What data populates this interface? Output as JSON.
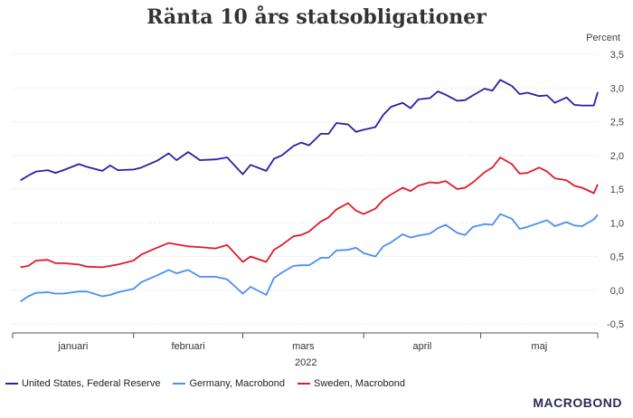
{
  "title": "Ränta 10 års statsobligationer",
  "unit_label": "Percent",
  "year_label": "2022",
  "brand": "MACROBOND",
  "colors": {
    "us": "#2b1fa3",
    "de": "#4a8ff0",
    "se": "#e01a2a",
    "grid": "#dcdcdc",
    "axis": "#555555"
  },
  "chart_data": {
    "type": "line",
    "title": "Ränta 10 års statsobligationer",
    "ylabel": "Percent",
    "xlabel": "2022",
    "ylim": [
      -0.5,
      3.5
    ],
    "yticks": [
      -0.5,
      0.0,
      0.5,
      1.0,
      1.5,
      2.0,
      2.5,
      3.0,
      3.5
    ],
    "ytick_labels": [
      "-0,5",
      "0,0",
      "0,5",
      "1,0",
      "1,5",
      "2,0",
      "2,5",
      "3,0",
      "3,5"
    ],
    "x_months": [
      "januari",
      "februari",
      "mars",
      "april",
      "maj"
    ],
    "x_range": [
      "2022-01-01",
      "2022-05-31"
    ],
    "grid": "horizontal",
    "legend_position": "bottom",
    "series": [
      {
        "name": "United States, Federal Reserve",
        "color": "#2b1fa3",
        "points": [
          [
            "2022-01-03",
            1.63
          ],
          [
            "2022-01-05",
            1.7
          ],
          [
            "2022-01-07",
            1.76
          ],
          [
            "2022-01-10",
            1.78
          ],
          [
            "2022-01-12",
            1.74
          ],
          [
            "2022-01-14",
            1.78
          ],
          [
            "2022-01-18",
            1.87
          ],
          [
            "2022-01-20",
            1.83
          ],
          [
            "2022-01-24",
            1.77
          ],
          [
            "2022-01-26",
            1.85
          ],
          [
            "2022-01-28",
            1.78
          ],
          [
            "2022-02-01",
            1.79
          ],
          [
            "2022-02-03",
            1.82
          ],
          [
            "2022-02-07",
            1.92
          ],
          [
            "2022-02-10",
            2.03
          ],
          [
            "2022-02-12",
            1.93
          ],
          [
            "2022-02-15",
            2.05
          ],
          [
            "2022-02-18",
            1.93
          ],
          [
            "2022-02-22",
            1.94
          ],
          [
            "2022-02-25",
            1.97
          ],
          [
            "2022-03-01",
            1.72
          ],
          [
            "2022-03-03",
            1.86
          ],
          [
            "2022-03-07",
            1.77
          ],
          [
            "2022-03-09",
            1.95
          ],
          [
            "2022-03-11",
            2.0
          ],
          [
            "2022-03-14",
            2.14
          ],
          [
            "2022-03-16",
            2.19
          ],
          [
            "2022-03-18",
            2.15
          ],
          [
            "2022-03-21",
            2.32
          ],
          [
            "2022-03-23",
            2.32
          ],
          [
            "2022-03-25",
            2.48
          ],
          [
            "2022-03-28",
            2.46
          ],
          [
            "2022-03-30",
            2.35
          ],
          [
            "2022-04-01",
            2.38
          ],
          [
            "2022-04-04",
            2.42
          ],
          [
            "2022-04-06",
            2.6
          ],
          [
            "2022-04-08",
            2.72
          ],
          [
            "2022-04-11",
            2.78
          ],
          [
            "2022-04-13",
            2.7
          ],
          [
            "2022-04-15",
            2.83
          ],
          [
            "2022-04-18",
            2.85
          ],
          [
            "2022-04-20",
            2.95
          ],
          [
            "2022-04-22",
            2.9
          ],
          [
            "2022-04-25",
            2.81
          ],
          [
            "2022-04-27",
            2.82
          ],
          [
            "2022-04-29",
            2.89
          ],
          [
            "2022-05-02",
            2.99
          ],
          [
            "2022-05-04",
            2.96
          ],
          [
            "2022-05-06",
            3.12
          ],
          [
            "2022-05-09",
            3.03
          ],
          [
            "2022-05-11",
            2.91
          ],
          [
            "2022-05-13",
            2.93
          ],
          [
            "2022-05-16",
            2.88
          ],
          [
            "2022-05-18",
            2.89
          ],
          [
            "2022-05-20",
            2.78
          ],
          [
            "2022-05-23",
            2.86
          ],
          [
            "2022-05-25",
            2.75
          ],
          [
            "2022-05-27",
            2.74
          ],
          [
            "2022-05-30",
            2.74
          ],
          [
            "2022-05-31",
            2.94
          ]
        ]
      },
      {
        "name": "Germany, Macrobond",
        "color": "#4a8ff0",
        "points": [
          [
            "2022-01-03",
            -0.17
          ],
          [
            "2022-01-05",
            -0.09
          ],
          [
            "2022-01-07",
            -0.04
          ],
          [
            "2022-01-10",
            -0.03
          ],
          [
            "2022-01-12",
            -0.05
          ],
          [
            "2022-01-14",
            -0.05
          ],
          [
            "2022-01-18",
            -0.02
          ],
          [
            "2022-01-20",
            -0.02
          ],
          [
            "2022-01-24",
            -0.09
          ],
          [
            "2022-01-26",
            -0.07
          ],
          [
            "2022-01-28",
            -0.03
          ],
          [
            "2022-02-01",
            0.02
          ],
          [
            "2022-02-03",
            0.12
          ],
          [
            "2022-02-07",
            0.22
          ],
          [
            "2022-02-10",
            0.3
          ],
          [
            "2022-02-12",
            0.25
          ],
          [
            "2022-02-15",
            0.3
          ],
          [
            "2022-02-18",
            0.2
          ],
          [
            "2022-02-22",
            0.2
          ],
          [
            "2022-02-25",
            0.16
          ],
          [
            "2022-03-01",
            -0.05
          ],
          [
            "2022-03-03",
            0.05
          ],
          [
            "2022-03-07",
            -0.07
          ],
          [
            "2022-03-09",
            0.18
          ],
          [
            "2022-03-11",
            0.26
          ],
          [
            "2022-03-14",
            0.36
          ],
          [
            "2022-03-16",
            0.37
          ],
          [
            "2022-03-18",
            0.37
          ],
          [
            "2022-03-21",
            0.48
          ],
          [
            "2022-03-23",
            0.48
          ],
          [
            "2022-03-25",
            0.59
          ],
          [
            "2022-03-28",
            0.6
          ],
          [
            "2022-03-30",
            0.63
          ],
          [
            "2022-04-01",
            0.55
          ],
          [
            "2022-04-04",
            0.5
          ],
          [
            "2022-04-06",
            0.65
          ],
          [
            "2022-04-08",
            0.71
          ],
          [
            "2022-04-11",
            0.83
          ],
          [
            "2022-04-13",
            0.78
          ],
          [
            "2022-04-15",
            0.81
          ],
          [
            "2022-04-18",
            0.84
          ],
          [
            "2022-04-20",
            0.92
          ],
          [
            "2022-04-22",
            0.97
          ],
          [
            "2022-04-25",
            0.85
          ],
          [
            "2022-04-27",
            0.82
          ],
          [
            "2022-04-29",
            0.94
          ],
          [
            "2022-05-02",
            0.98
          ],
          [
            "2022-05-04",
            0.97
          ],
          [
            "2022-05-06",
            1.13
          ],
          [
            "2022-05-09",
            1.06
          ],
          [
            "2022-05-11",
            0.91
          ],
          [
            "2022-05-13",
            0.94
          ],
          [
            "2022-05-16",
            1.0
          ],
          [
            "2022-05-18",
            1.04
          ],
          [
            "2022-05-20",
            0.95
          ],
          [
            "2022-05-23",
            1.01
          ],
          [
            "2022-05-25",
            0.96
          ],
          [
            "2022-05-27",
            0.95
          ],
          [
            "2022-05-30",
            1.05
          ],
          [
            "2022-05-31",
            1.12
          ]
        ]
      },
      {
        "name": "Sweden, Macrobond",
        "color": "#e01a2a",
        "points": [
          [
            "2022-01-03",
            0.34
          ],
          [
            "2022-01-05",
            0.36
          ],
          [
            "2022-01-07",
            0.44
          ],
          [
            "2022-01-10",
            0.45
          ],
          [
            "2022-01-12",
            0.4
          ],
          [
            "2022-01-14",
            0.4
          ],
          [
            "2022-01-18",
            0.38
          ],
          [
            "2022-01-20",
            0.35
          ],
          [
            "2022-01-24",
            0.34
          ],
          [
            "2022-01-26",
            0.36
          ],
          [
            "2022-01-28",
            0.38
          ],
          [
            "2022-02-01",
            0.44
          ],
          [
            "2022-02-03",
            0.53
          ],
          [
            "2022-02-07",
            0.63
          ],
          [
            "2022-02-10",
            0.7
          ],
          [
            "2022-02-12",
            0.68
          ],
          [
            "2022-02-15",
            0.65
          ],
          [
            "2022-02-18",
            0.64
          ],
          [
            "2022-02-22",
            0.62
          ],
          [
            "2022-02-25",
            0.67
          ],
          [
            "2022-03-01",
            0.42
          ],
          [
            "2022-03-03",
            0.5
          ],
          [
            "2022-03-07",
            0.42
          ],
          [
            "2022-03-09",
            0.6
          ],
          [
            "2022-03-11",
            0.67
          ],
          [
            "2022-03-14",
            0.8
          ],
          [
            "2022-03-16",
            0.82
          ],
          [
            "2022-03-18",
            0.87
          ],
          [
            "2022-03-21",
            1.02
          ],
          [
            "2022-03-23",
            1.08
          ],
          [
            "2022-03-25",
            1.2
          ],
          [
            "2022-03-28",
            1.29
          ],
          [
            "2022-03-30",
            1.18
          ],
          [
            "2022-04-01",
            1.13
          ],
          [
            "2022-04-04",
            1.21
          ],
          [
            "2022-04-06",
            1.34
          ],
          [
            "2022-04-08",
            1.42
          ],
          [
            "2022-04-11",
            1.52
          ],
          [
            "2022-04-13",
            1.47
          ],
          [
            "2022-04-15",
            1.55
          ],
          [
            "2022-04-18",
            1.6
          ],
          [
            "2022-04-20",
            1.59
          ],
          [
            "2022-04-22",
            1.62
          ],
          [
            "2022-04-25",
            1.5
          ],
          [
            "2022-04-27",
            1.52
          ],
          [
            "2022-04-29",
            1.6
          ],
          [
            "2022-05-02",
            1.75
          ],
          [
            "2022-05-04",
            1.82
          ],
          [
            "2022-05-06",
            1.97
          ],
          [
            "2022-05-09",
            1.87
          ],
          [
            "2022-05-11",
            1.73
          ],
          [
            "2022-05-13",
            1.74
          ],
          [
            "2022-05-16",
            1.82
          ],
          [
            "2022-05-18",
            1.76
          ],
          [
            "2022-05-20",
            1.66
          ],
          [
            "2022-05-23",
            1.63
          ],
          [
            "2022-05-25",
            1.55
          ],
          [
            "2022-05-27",
            1.52
          ],
          [
            "2022-05-30",
            1.44
          ],
          [
            "2022-05-31",
            1.57
          ]
        ]
      }
    ]
  }
}
